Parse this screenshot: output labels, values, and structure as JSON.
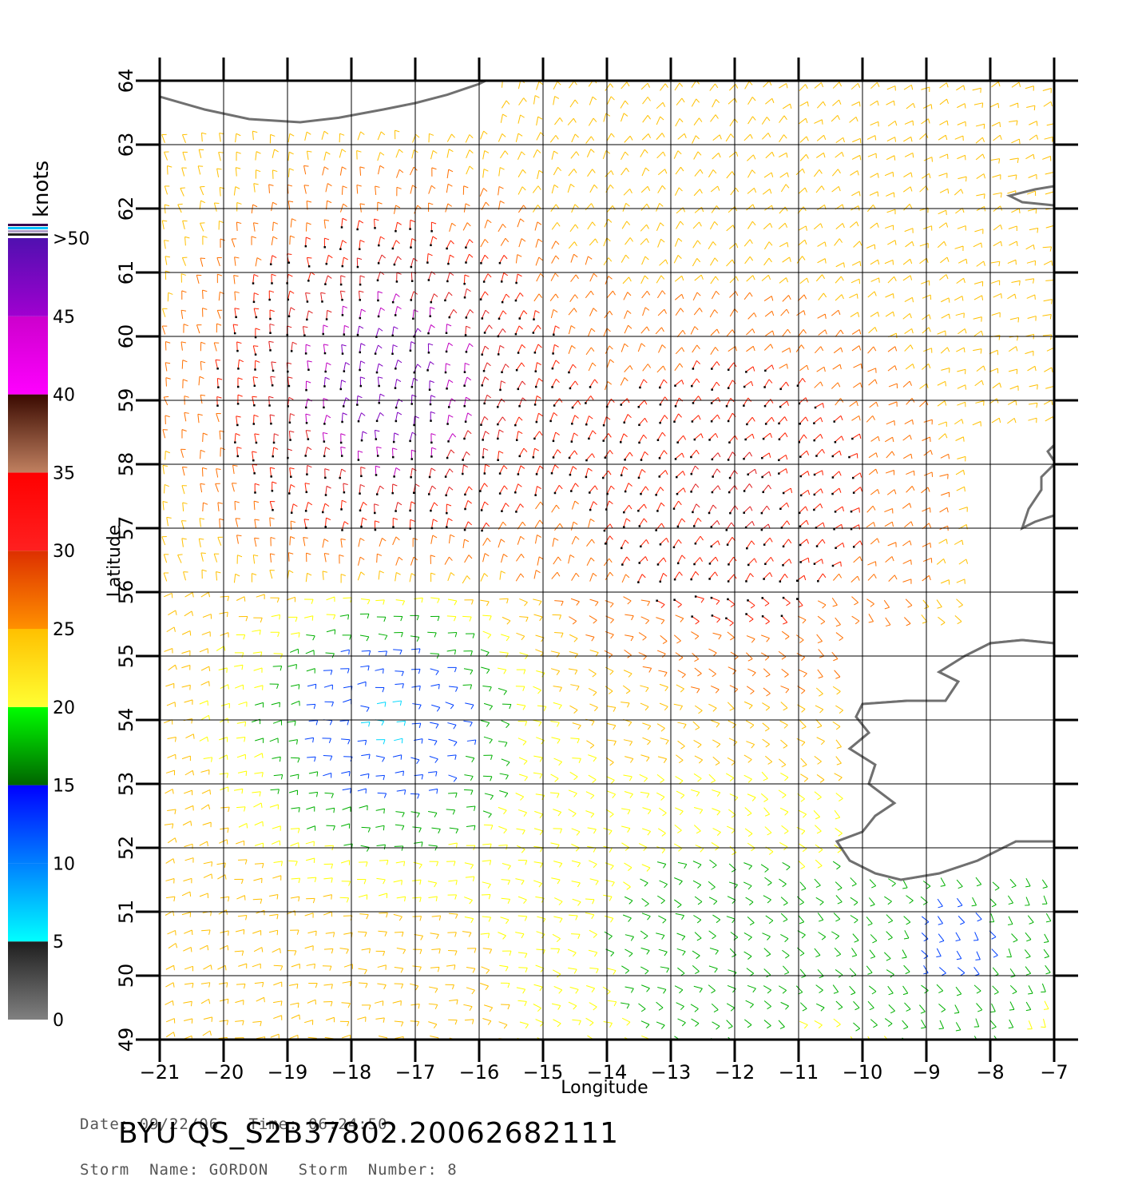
{
  "map": {
    "xlabel": "Longitude",
    "ylabel": "Latitude",
    "lon_range": [
      -21,
      -7
    ],
    "lat_range": [
      49,
      64
    ],
    "lon_ticks": [
      "−21",
      "−20",
      "−19",
      "−18",
      "−17",
      "−16",
      "−15",
      "−14",
      "−13",
      "−12",
      "−11",
      "−10",
      "−9",
      "−8",
      "−7"
    ],
    "lat_ticks": [
      "49",
      "50",
      "51",
      "52",
      "53",
      "54",
      "55",
      "56",
      "57",
      "58",
      "59",
      "60",
      "61",
      "62",
      "63",
      "64"
    ],
    "grid": true,
    "colors": {
      "coast": "#707070",
      "grid": "#000000"
    }
  },
  "colorbar": {
    "unit": "knots",
    "tick_labels": [
      "0",
      "5",
      "10",
      "15",
      "20",
      "25",
      "30",
      "35",
      "40",
      "45",
      ">50"
    ],
    "bands": [
      {
        "from": 0,
        "to": 5,
        "colors": [
          "#808080",
          "#1e1e1e"
        ]
      },
      {
        "from": 5,
        "to": 10,
        "colors": [
          "#00ffff",
          "#0080ff"
        ]
      },
      {
        "from": 10,
        "to": 15,
        "colors": [
          "#0080ff",
          "#0000ff"
        ]
      },
      {
        "from": 15,
        "to": 20,
        "colors": [
          "#006400",
          "#00ff00"
        ]
      },
      {
        "from": 20,
        "to": 25,
        "colors": [
          "#ffff33",
          "#ffc000"
        ]
      },
      {
        "from": 25,
        "to": 30,
        "colors": [
          "#ff9000",
          "#dd3000"
        ]
      },
      {
        "from": 30,
        "to": 35,
        "colors": [
          "#ff2020",
          "#ff0000"
        ]
      },
      {
        "from": 35,
        "to": 40,
        "colors": [
          "#c08060",
          "#3a0a00"
        ]
      },
      {
        "from": 40,
        "to": 45,
        "colors": [
          "#ff00ff",
          "#cc00cc"
        ]
      },
      {
        "from": 45,
        "to": 50,
        "colors": [
          "#a000d0",
          "#5010b0"
        ]
      }
    ]
  },
  "info": {
    "date_line": "Date: 09/22/06   Time: 06:24:50",
    "storm_line": "Storm  Name: GORDON   Storm  Number: 8",
    "run_id": "BYU  QS_S2B37802.20062682111"
  }
}
